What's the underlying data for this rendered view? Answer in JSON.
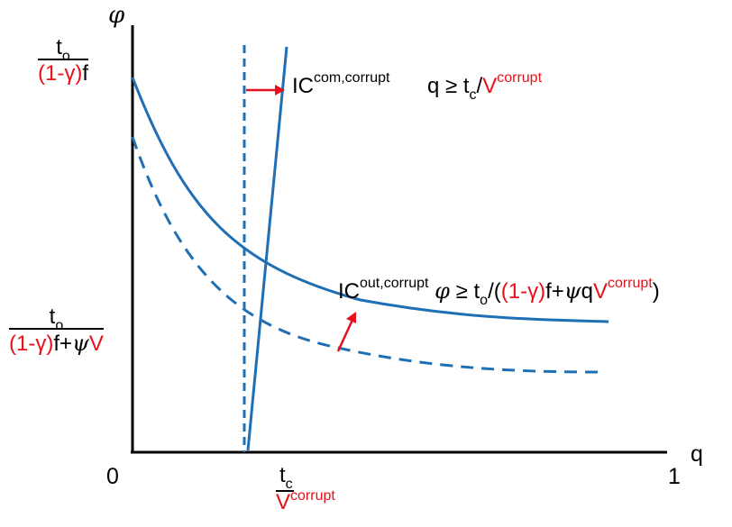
{
  "axes": {
    "y_label": "φ",
    "x_label": "q",
    "origin": "0",
    "x_end": "1"
  },
  "y_tick_top": {
    "numerator": "t",
    "numerator_sub": "o",
    "den_red": "(1-γ)",
    "den_rest": "f"
  },
  "y_tick_bottom": {
    "numerator": "t",
    "numerator_sub": "o",
    "den_red": "(1-γ)",
    "den_mid": "f+",
    "den_psi": "ψ",
    "den_v": "V"
  },
  "x_tick": {
    "numerator": "t",
    "numerator_sub": "c",
    "den_v": "V",
    "den_sup": "corrupt"
  },
  "ic_com": {
    "name": "IC",
    "name_sup": "com,corrupt",
    "cond_q": "q ≥ t",
    "cond_sub": "c",
    "cond_slash": "/",
    "cond_v": "V",
    "cond_sup": "corrupt"
  },
  "ic_out": {
    "name": "IC",
    "name_sup": "out,corrupt",
    "phi": "φ",
    "geq_t": " ≥ t",
    "sub": "o",
    "slash_open": "/(",
    "red_gamma": "(1-γ)",
    "f_plus": "f+",
    "psi": "ψ",
    "q": "q",
    "v": "V",
    "v_sup": "corrupt",
    "close": ")"
  },
  "colors": {
    "curve": "#1f6fb5",
    "arrow": "#e8101a",
    "axis": "#000000",
    "red_text": "#e8101a"
  }
}
